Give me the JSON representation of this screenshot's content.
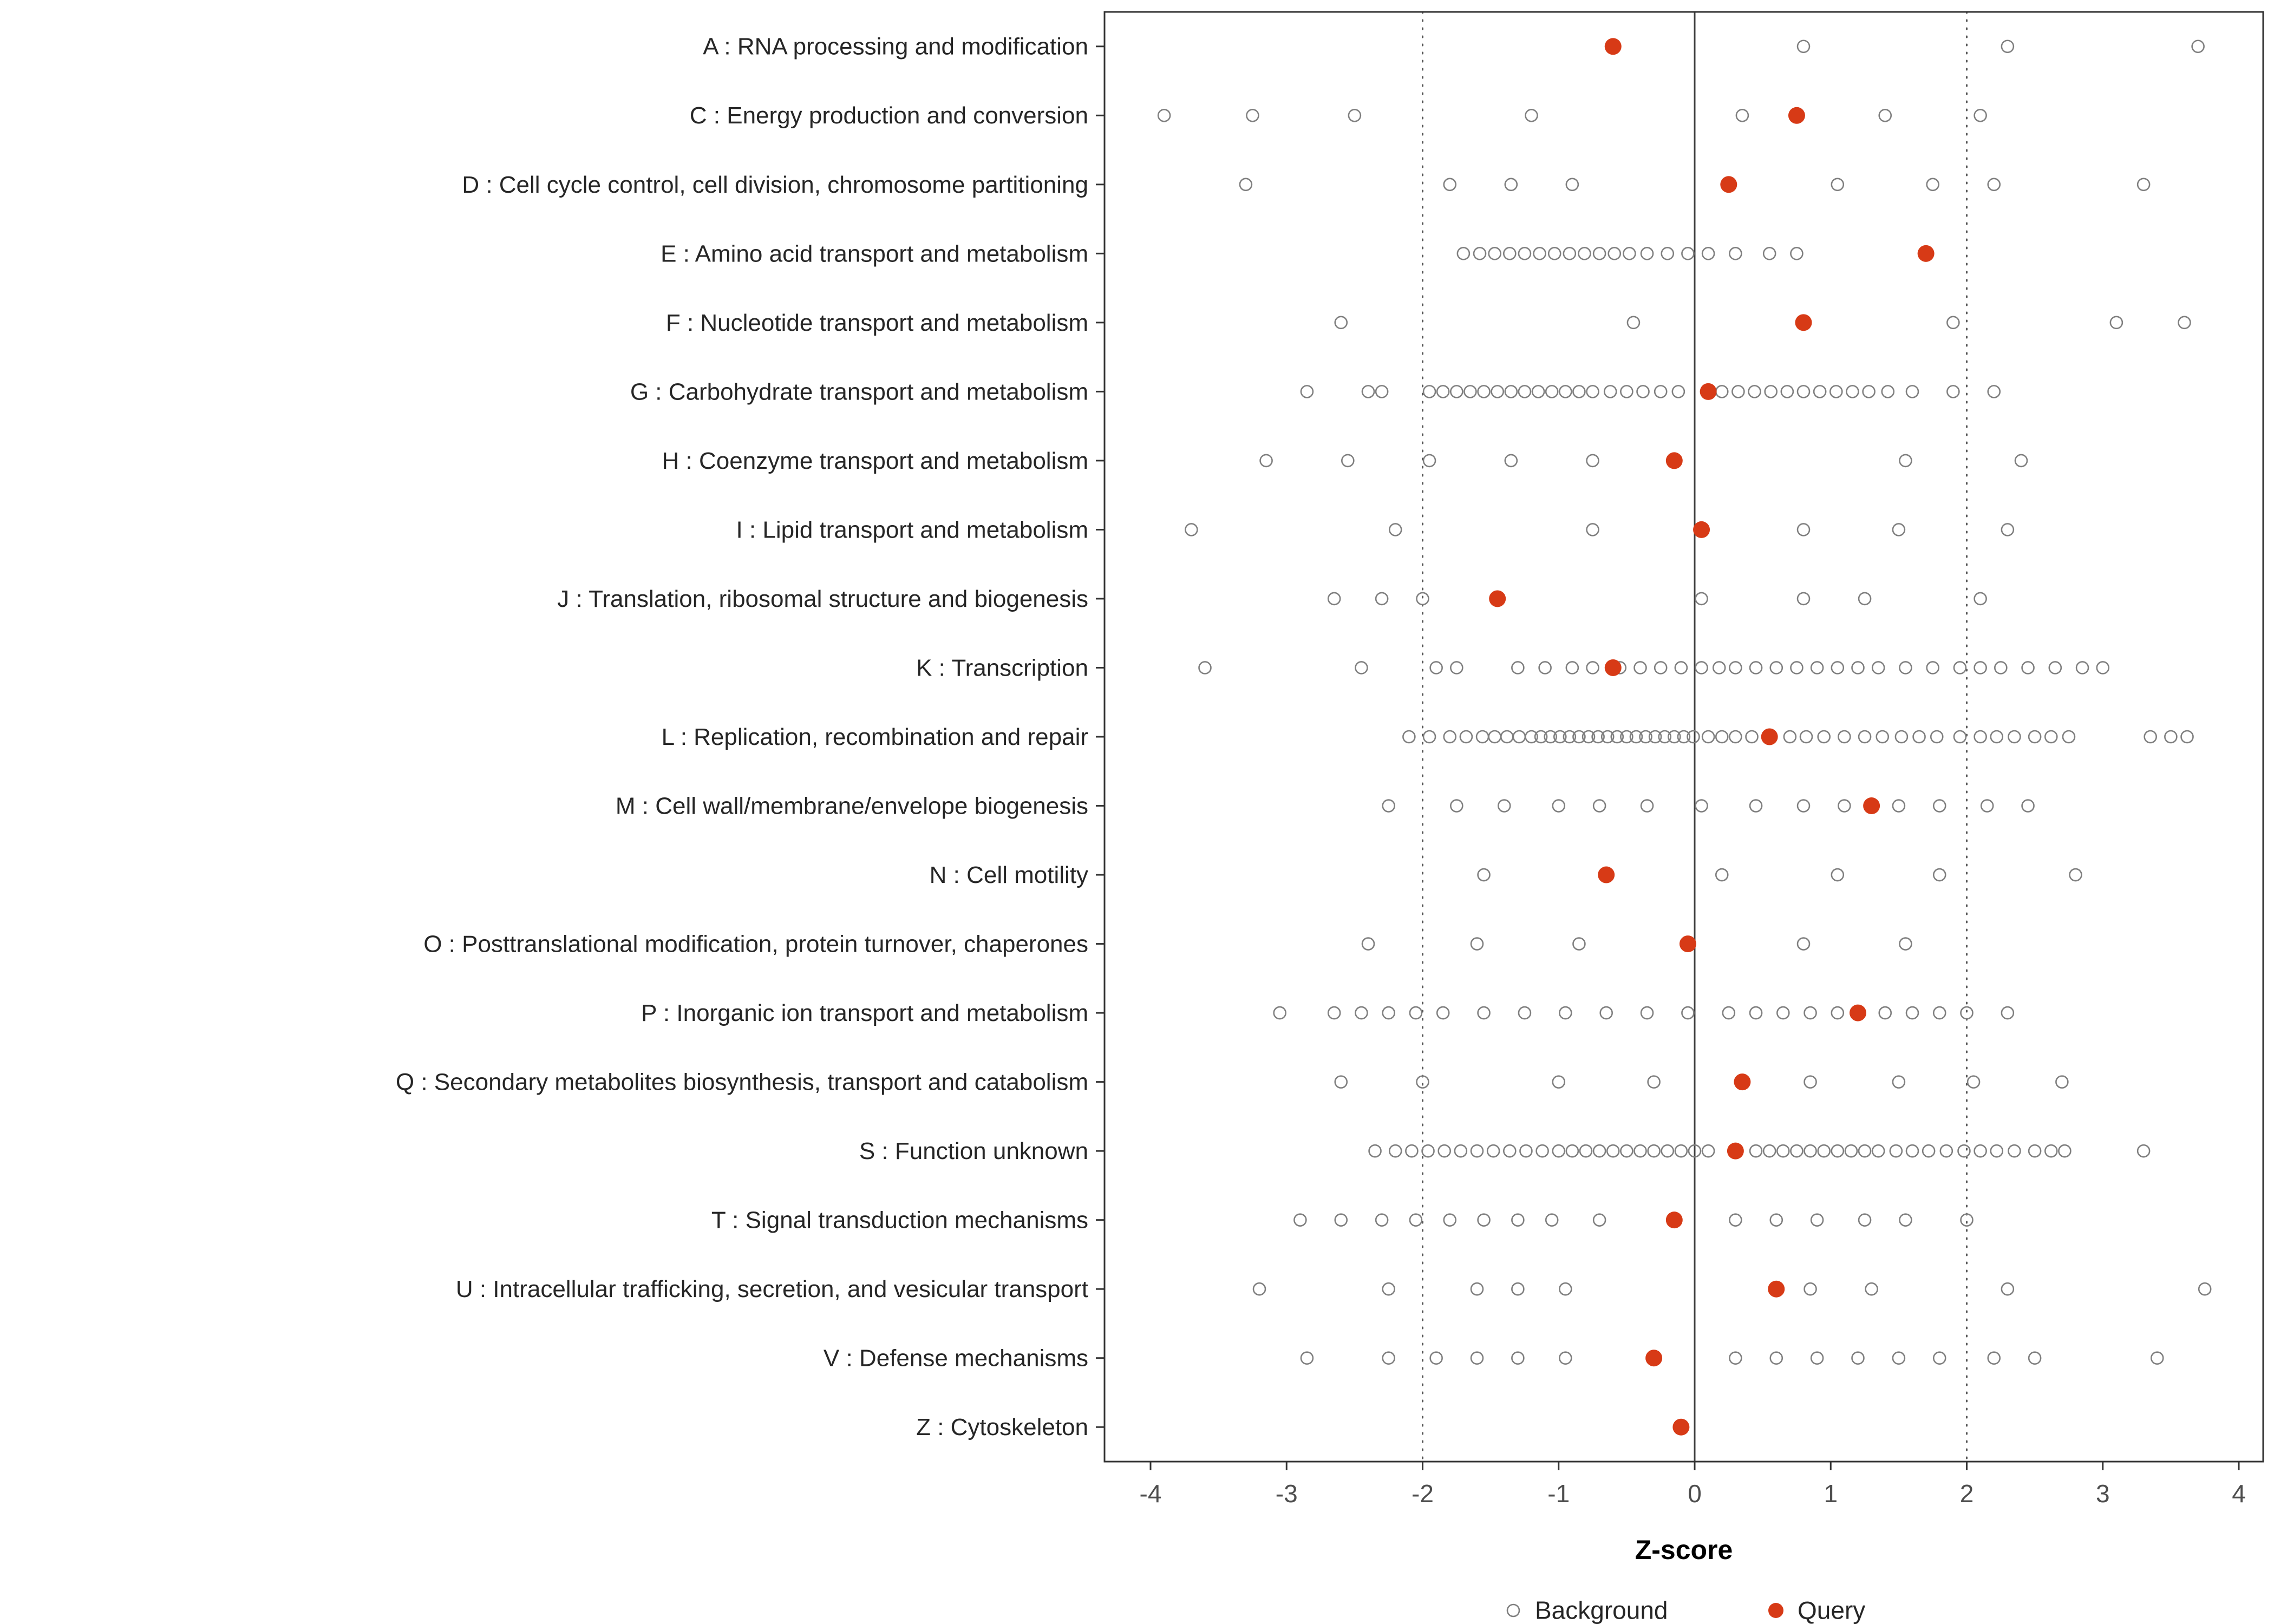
{
  "chart_data": {
    "type": "scatter",
    "title": "",
    "xlabel": "Z-score",
    "ylabel": "",
    "xlim": [
      -4.4,
      4.2
    ],
    "x_ticks": [
      -4,
      -3,
      -2,
      -1,
      0,
      1,
      2,
      3,
      4
    ],
    "reference_lines": {
      "solid": [
        0
      ],
      "dotted": [
        -2,
        2
      ]
    },
    "grid": false,
    "legend_position": "bottom",
    "legend": [
      {
        "label": "Background",
        "style": "open"
      },
      {
        "label": "Query",
        "style": "filled"
      }
    ],
    "colors": {
      "query": "#d73a16",
      "background_stroke": "#7f7f7f",
      "reference_solid": "#3f3f3f",
      "reference_dotted": "#555555",
      "panel_border": "#333333"
    },
    "categories": [
      {
        "code": "A",
        "label": "A : RNA processing and modification",
        "query": -0.6,
        "background": [
          0.8,
          2.3,
          3.7
        ]
      },
      {
        "code": "C",
        "label": "C : Energy production and conversion",
        "query": 0.75,
        "background": [
          -3.9,
          -3.25,
          -2.5,
          -1.2,
          0.35,
          1.4,
          2.1
        ]
      },
      {
        "code": "D",
        "label": "D : Cell cycle control, cell division, chromosome partitioning",
        "query": 0.25,
        "background": [
          -3.3,
          -1.8,
          -1.35,
          -0.9,
          1.05,
          1.75,
          2.2,
          3.3
        ]
      },
      {
        "code": "E",
        "label": "E : Amino acid transport and metabolism",
        "query": 1.7,
        "background": [
          -1.7,
          -1.58,
          -1.47,
          -1.36,
          -1.25,
          -1.14,
          -1.03,
          -0.92,
          -0.81,
          -0.7,
          -0.59,
          -0.48,
          -0.35,
          -0.2,
          -0.05,
          0.1,
          0.3,
          0.55,
          0.75
        ]
      },
      {
        "code": "F",
        "label": "F : Nucleotide transport and metabolism",
        "query": 0.8,
        "background": [
          -2.6,
          -0.45,
          1.9,
          3.1,
          3.6
        ]
      },
      {
        "code": "G",
        "label": "G : Carbohydrate transport and metabolism",
        "query": 0.1,
        "background": [
          -2.85,
          -2.4,
          -2.3,
          -1.95,
          -1.85,
          -1.75,
          -1.65,
          -1.55,
          -1.45,
          -1.35,
          -1.25,
          -1.15,
          -1.05,
          -0.95,
          -0.85,
          -0.75,
          -0.62,
          -0.5,
          -0.38,
          -0.25,
          -0.12,
          0.2,
          0.32,
          0.44,
          0.56,
          0.68,
          0.8,
          0.92,
          1.04,
          1.16,
          1.28,
          1.42,
          1.6,
          1.9,
          2.2
        ]
      },
      {
        "code": "H",
        "label": "H : Coenzyme transport and metabolism",
        "query": -0.15,
        "background": [
          -3.15,
          -2.55,
          -1.95,
          -1.35,
          -0.75,
          1.55,
          2.4
        ]
      },
      {
        "code": "I",
        "label": "I : Lipid transport and metabolism",
        "query": 0.05,
        "background": [
          -3.7,
          -2.2,
          -0.75,
          0.8,
          1.5,
          2.3
        ]
      },
      {
        "code": "J",
        "label": "J : Translation, ribosomal structure and biogenesis",
        "query": -1.45,
        "background": [
          -2.65,
          -2.3,
          -2.0,
          0.05,
          0.8,
          1.25,
          2.1
        ]
      },
      {
        "code": "K",
        "label": "K : Transcription",
        "query": -0.6,
        "background": [
          -3.6,
          -2.45,
          -1.9,
          -1.75,
          -1.3,
          -1.1,
          -0.9,
          -0.75,
          -0.55,
          -0.4,
          -0.25,
          -0.1,
          0.05,
          0.18,
          0.3,
          0.45,
          0.6,
          0.75,
          0.9,
          1.05,
          1.2,
          1.35,
          1.55,
          1.75,
          1.95,
          2.1,
          2.25,
          2.45,
          2.65,
          2.85,
          3.0
        ]
      },
      {
        "code": "L",
        "label": "L : Replication, recombination and repair",
        "query": 0.55,
        "background": [
          -2.1,
          -1.95,
          -1.8,
          -1.68,
          -1.56,
          -1.47,
          -1.38,
          -1.29,
          -1.2,
          -1.13,
          -1.06,
          -0.99,
          -0.92,
          -0.85,
          -0.78,
          -0.71,
          -0.64,
          -0.57,
          -0.5,
          -0.43,
          -0.36,
          -0.29,
          -0.22,
          -0.15,
          -0.08,
          -0.01,
          0.1,
          0.2,
          0.3,
          0.42,
          0.7,
          0.82,
          0.95,
          1.1,
          1.25,
          1.38,
          1.52,
          1.65,
          1.78,
          1.95,
          2.1,
          2.22,
          2.35,
          2.5,
          2.62,
          2.75,
          3.35,
          3.5,
          3.62
        ]
      },
      {
        "code": "M",
        "label": "M : Cell wall/membrane/envelope biogenesis",
        "query": 1.3,
        "background": [
          -2.25,
          -1.75,
          -1.4,
          -1.0,
          -0.7,
          -0.35,
          0.05,
          0.45,
          0.8,
          1.1,
          1.5,
          1.8,
          2.15,
          2.45
        ]
      },
      {
        "code": "N",
        "label": "N : Cell motility",
        "query": -0.65,
        "background": [
          -1.55,
          0.2,
          1.05,
          1.8,
          2.8
        ]
      },
      {
        "code": "O",
        "label": "O : Posttranslational modification, protein turnover, chaperones",
        "query": -0.05,
        "background": [
          -2.4,
          -1.6,
          -0.85,
          0.8,
          1.55
        ]
      },
      {
        "code": "P",
        "label": "P : Inorganic ion transport and metabolism",
        "query": 1.2,
        "background": [
          -3.05,
          -2.65,
          -2.45,
          -2.25,
          -2.05,
          -1.85,
          -1.55,
          -1.25,
          -0.95,
          -0.65,
          -0.35,
          -0.05,
          0.25,
          0.45,
          0.65,
          0.85,
          1.05,
          1.4,
          1.6,
          1.8,
          2.0,
          2.3
        ]
      },
      {
        "code": "Q",
        "label": "Q : Secondary metabolites biosynthesis, transport and catabolism",
        "query": 0.35,
        "background": [
          -2.6,
          -2.0,
          -1.0,
          -0.3,
          0.85,
          1.5,
          2.05,
          2.7
        ]
      },
      {
        "code": "S",
        "label": "S : Function unknown",
        "query": 0.3,
        "background": [
          -2.35,
          -2.2,
          -2.08,
          -1.96,
          -1.84,
          -1.72,
          -1.6,
          -1.48,
          -1.36,
          -1.24,
          -1.12,
          -1.0,
          -0.9,
          -0.8,
          -0.7,
          -0.6,
          -0.5,
          -0.4,
          -0.3,
          -0.2,
          -0.1,
          0.0,
          0.1,
          0.45,
          0.55,
          0.65,
          0.75,
          0.85,
          0.95,
          1.05,
          1.15,
          1.25,
          1.35,
          1.48,
          1.6,
          1.72,
          1.85,
          1.98,
          2.1,
          2.22,
          2.35,
          2.5,
          2.62,
          2.72,
          3.3
        ]
      },
      {
        "code": "T",
        "label": "T : Signal transduction mechanisms",
        "query": -0.15,
        "background": [
          -2.9,
          -2.6,
          -2.3,
          -2.05,
          -1.8,
          -1.55,
          -1.3,
          -1.05,
          -0.7,
          0.3,
          0.6,
          0.9,
          1.25,
          1.55,
          2.0
        ]
      },
      {
        "code": "U",
        "label": "U : Intracellular trafficking, secretion, and vesicular transport",
        "query": 0.6,
        "background": [
          -3.2,
          -2.25,
          -1.6,
          -1.3,
          -0.95,
          0.85,
          1.3,
          2.3,
          3.75
        ]
      },
      {
        "code": "V",
        "label": "V : Defense mechanisms",
        "query": -0.3,
        "background": [
          -2.85,
          -2.25,
          -1.9,
          -1.6,
          -1.3,
          -0.95,
          0.3,
          0.6,
          0.9,
          1.2,
          1.5,
          1.8,
          2.2,
          2.5,
          3.4
        ]
      },
      {
        "code": "Z",
        "label": "Z : Cytoskeleton",
        "query": -0.1,
        "background": []
      }
    ]
  }
}
